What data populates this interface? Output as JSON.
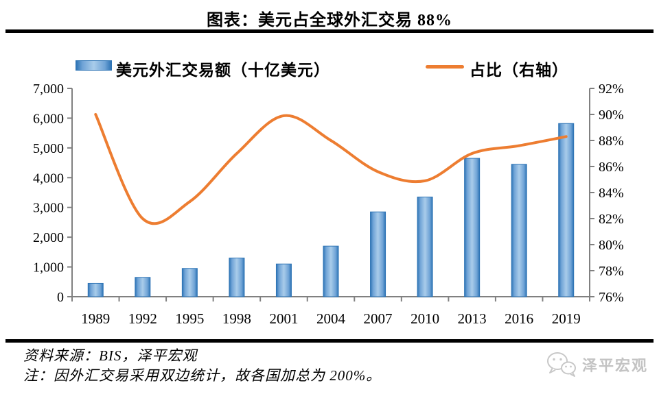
{
  "page": {
    "title": "图表：美元占全球外汇交易 88%"
  },
  "legend": {
    "bars_label": "美元外汇交易额（十亿美元）",
    "line_label": "占比（右轴）"
  },
  "footer": {
    "source": "资料来源：BIS，泽平宏观",
    "note": "注：因外汇交易采用双边统计，故各国加总为 200%。",
    "watermark": "泽平宏观",
    "watermark_icon": "wechat-logo"
  },
  "colors": {
    "bar_edge": "#2E74B5",
    "bar_mid": "#A9CCEA",
    "bar_light": "#6FA3D6",
    "line": "#ED7D31",
    "axis": "#808080",
    "text": "#000000",
    "watermark": "#C6C6C6"
  },
  "chart_data": {
    "type": "bar",
    "subtype": "bar+line dual axis",
    "title": "图表：美元占全球外汇交易 88%",
    "categories": [
      "1989",
      "1992",
      "1995",
      "1998",
      "2001",
      "2004",
      "2007",
      "2010",
      "2013",
      "2016",
      "2019"
    ],
    "series": [
      {
        "name": "美元外汇交易额（十亿美元）",
        "type": "bar",
        "axis": "left",
        "values": [
          450,
          650,
          950,
          1300,
          1100,
          1700,
          2850,
          3350,
          4650,
          4450,
          5820
        ]
      },
      {
        "name": "占比（右轴）",
        "type": "line",
        "axis": "right",
        "smooth": true,
        "values": [
          90.0,
          82.0,
          83.3,
          87.0,
          89.9,
          88.0,
          85.6,
          84.9,
          87.0,
          87.6,
          88.3
        ]
      }
    ],
    "left_axis": {
      "min": 0,
      "max": 7000,
      "step": 1000,
      "tick_labels": [
        "0",
        "1,000",
        "2,000",
        "3,000",
        "4,000",
        "5,000",
        "6,000",
        "7,000"
      ]
    },
    "right_axis": {
      "min": 76,
      "max": 92,
      "step": 2,
      "tick_labels": [
        "76%",
        "78%",
        "80%",
        "82%",
        "84%",
        "86%",
        "88%",
        "90%",
        "92%"
      ]
    },
    "grid": false,
    "legend_position": "top"
  }
}
